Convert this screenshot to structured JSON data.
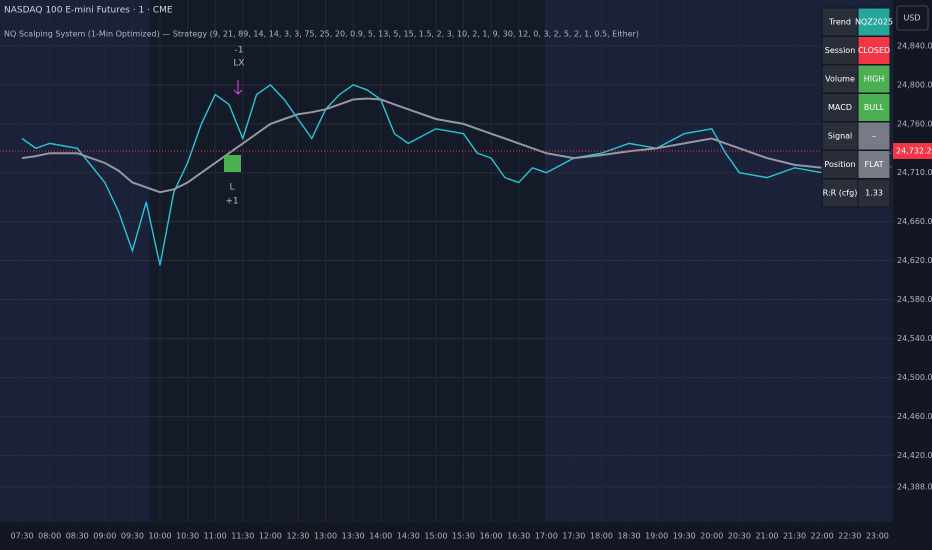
{
  "header": {
    "title": "NASDAQ 100 E-mini Futures · 1 · CME",
    "strategy": "NQ Scalping System (1-Min Optimized) — Strategy (9, 21, 89, 14, 14, 3, 3, 75, 25, 20, 0.9, 5, 13, 5, 15, 1.5, 2, 3, 10, 2, 1, 9, 30, 12, 0, 3, 2, 5, 2, 1, 0.5, Either)",
    "currency": "USD"
  },
  "status_table": {
    "rows": [
      [
        "Trend",
        "NQZ2025"
      ],
      [
        "Session",
        "CLOSED"
      ],
      [
        "Volume",
        "HIGH"
      ],
      [
        "MACD",
        "BULL"
      ],
      [
        "Signal",
        "–"
      ],
      [
        "Position",
        "FLAT"
      ],
      [
        "R:R (cfg)",
        "1.33"
      ]
    ]
  },
  "chart_data": {
    "type": "line",
    "x": [
      450,
      465,
      480,
      510,
      540,
      555,
      570,
      585,
      600,
      615,
      630,
      645,
      660,
      675,
      690,
      705,
      720,
      735,
      750,
      765,
      780,
      795,
      810,
      825,
      840,
      855,
      870,
      900,
      930,
      945,
      960,
      975,
      990,
      1005,
      1020,
      1050,
      1080,
      1110,
      1140,
      1170,
      1200,
      1215,
      1230,
      1260,
      1290,
      1320,
      1350,
      1380,
      1395
    ],
    "series": [
      {
        "color": "#26c6da",
        "values": [
          24745,
          24735,
          24740,
          24735,
          24700,
          24670,
          24630,
          24680,
          24615,
          24690,
          24720,
          24760,
          24790,
          24780,
          24745,
          24790,
          24800,
          24785,
          24765,
          24745,
          24775,
          24790,
          24800,
          24795,
          24785,
          24750,
          24740,
          24755,
          24750,
          24730,
          24725,
          24705,
          24700,
          24715,
          24710,
          24725,
          24730,
          24740,
          24735,
          24750,
          24755,
          24730,
          24710,
          24705,
          24715,
          24710,
          24715,
          24720,
          24730
        ]
      },
      {
        "color": "#9598a1",
        "values": [
          24725,
          24727,
          24730,
          24730,
          24720,
          24712,
          24700,
          24695,
          24690,
          24693,
          24700,
          24710,
          24720,
          24730,
          24740,
          24750,
          24760,
          24765,
          24770,
          24772,
          24775,
          24780,
          24785,
          24786,
          24785,
          24780,
          24775,
          24765,
          24760,
          24755,
          24750,
          24745,
          24740,
          24735,
          24730,
          24725,
          24728,
          24732,
          24735,
          24740,
          24745,
          24740,
          24735,
          24725,
          24718,
          24715,
          24714,
          24715,
          24716
        ]
      }
    ],
    "xlim": [
      426,
      1397
    ],
    "ylim": [
      24352,
      24887
    ],
    "xticks": [
      {
        "value": 450,
        "label": "07:30"
      },
      {
        "value": 480,
        "label": "08:00"
      },
      {
        "value": 510,
        "label": "08:30"
      },
      {
        "value": 540,
        "label": "09:00"
      },
      {
        "value": 570,
        "label": "09:30"
      },
      {
        "value": 600,
        "label": "10:00"
      },
      {
        "value": 630,
        "label": "10:30"
      },
      {
        "value": 660,
        "label": "11:00"
      },
      {
        "value": 690,
        "label": "11:30"
      },
      {
        "value": 720,
        "label": "12:00"
      },
      {
        "value": 750,
        "label": "12:30"
      },
      {
        "value": 780,
        "label": "13:00"
      },
      {
        "value": 810,
        "label": "13:30"
      },
      {
        "value": 840,
        "label": "14:00"
      },
      {
        "value": 870,
        "label": "14:30"
      },
      {
        "value": 900,
        "label": "15:00"
      },
      {
        "value": 930,
        "label": "15:30"
      },
      {
        "value": 960,
        "label": "16:00"
      },
      {
        "value": 990,
        "label": "16:30"
      },
      {
        "value": 1020,
        "label": "17:00"
      },
      {
        "value": 1050,
        "label": "17:30"
      },
      {
        "value": 1080,
        "label": "18:00"
      },
      {
        "value": 1110,
        "label": "18:30"
      },
      {
        "value": 1140,
        "label": "19:00"
      },
      {
        "value": 1170,
        "label": "19:30"
      },
      {
        "value": 1200,
        "label": "20:00"
      },
      {
        "value": 1230,
        "label": "20:30"
      },
      {
        "value": 1260,
        "label": "21:00"
      },
      {
        "value": 1290,
        "label": "21:30"
      },
      {
        "value": 1320,
        "label": "22:00"
      },
      {
        "value": 1350,
        "label": "22:30"
      },
      {
        "value": 1380,
        "label": "23:00"
      }
    ],
    "yticks": [
      {
        "value": 24840,
        "label": "24,840.00"
      },
      {
        "value": 24800,
        "label": "24,800.00"
      },
      {
        "value": 24760,
        "label": "24,760.00"
      },
      {
        "value": 24710,
        "label": "24,710.00"
      },
      {
        "value": 24660,
        "label": "24,660.00"
      },
      {
        "value": 24620,
        "label": "24,620.00"
      },
      {
        "value": 24580,
        "label": "24,580.00"
      },
      {
        "value": 24540,
        "label": "24,540.00"
      },
      {
        "value": 24500,
        "label": "24,500.00"
      },
      {
        "value": 24460,
        "label": "24,460.00"
      },
      {
        "value": 24420,
        "label": "24,420.00"
      },
      {
        "value": 24388,
        "label": "24,388.00"
      }
    ],
    "grid": true,
    "last_price": {
      "value": 24732.25,
      "label": "24,732.25"
    },
    "annotations": [
      "-1",
      "LX",
      "L",
      "+1"
    ]
  }
}
